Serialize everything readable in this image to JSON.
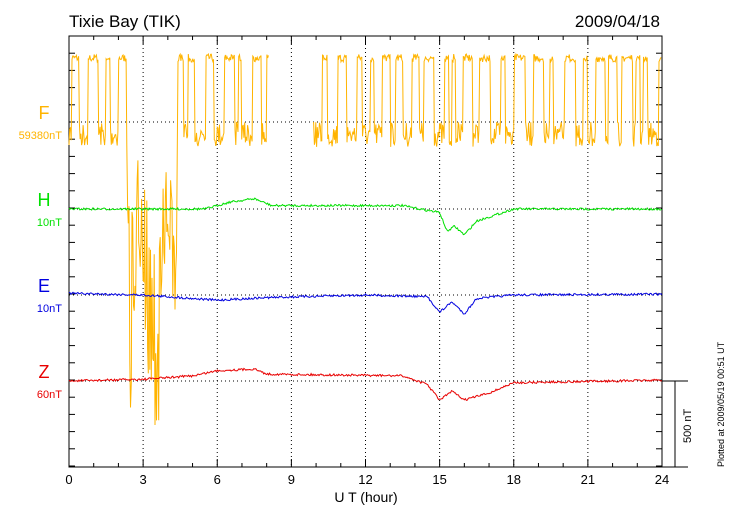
{
  "chart_data": {
    "type": "line",
    "title": "Tixie Bay (TIK)",
    "date": "2009/04/18",
    "xlabel": "U T (hour)",
    "xlim": [
      0,
      24
    ],
    "xticks": [
      "0",
      "3",
      "6",
      "9",
      "12",
      "15",
      "18",
      "21",
      "24"
    ],
    "scale_bar": "500 nT",
    "plotted_note": "Plotted at 2009/05/19 00:51 UT",
    "series": [
      {
        "name": "F",
        "base_label": "59380nT",
        "color": "#ffb400",
        "points": [
          [
            0,
            0
          ],
          [
            2.3,
            0
          ],
          [
            2.5,
            -1900
          ],
          [
            2.8,
            -700
          ],
          [
            3.2,
            -1500
          ],
          [
            3.6,
            -1900
          ],
          [
            4.0,
            -600
          ],
          [
            4.3,
            -1800
          ],
          [
            4.4,
            0
          ],
          [
            24,
            0
          ]
        ]
      },
      {
        "name": "H",
        "base_label": "10nT",
        "color": "#00e000",
        "points": [
          [
            0,
            0
          ],
          [
            5.5,
            0
          ],
          [
            6.5,
            40
          ],
          [
            7.5,
            60
          ],
          [
            8.2,
            20
          ],
          [
            13.5,
            20
          ],
          [
            14,
            5
          ],
          [
            15,
            -20
          ],
          [
            15.3,
            -130
          ],
          [
            15.6,
            -100
          ],
          [
            16,
            -150
          ],
          [
            16.5,
            -70
          ],
          [
            18,
            0
          ],
          [
            24,
            0
          ]
        ]
      },
      {
        "name": "E",
        "base_label": "10nT",
        "color": "#0000e0",
        "points": [
          [
            0,
            10
          ],
          [
            3,
            0
          ],
          [
            6,
            -30
          ],
          [
            8,
            -15
          ],
          [
            12,
            0
          ],
          [
            14.5,
            -10
          ],
          [
            15,
            -100
          ],
          [
            15.5,
            -40
          ],
          [
            16,
            -110
          ],
          [
            16.5,
            -20
          ],
          [
            18,
            0
          ],
          [
            24,
            5
          ]
        ]
      },
      {
        "name": "Z",
        "base_label": "60nT",
        "color": "#e80000",
        "points": [
          [
            0,
            0
          ],
          [
            3,
            10
          ],
          [
            5,
            30
          ],
          [
            6,
            60
          ],
          [
            7.5,
            70
          ],
          [
            8,
            40
          ],
          [
            13.5,
            30
          ],
          [
            14.5,
            -20
          ],
          [
            15,
            -110
          ],
          [
            15.5,
            -60
          ],
          [
            16,
            -110
          ],
          [
            17,
            -70
          ],
          [
            18,
            -10
          ],
          [
            24,
            5
          ]
        ]
      }
    ]
  }
}
